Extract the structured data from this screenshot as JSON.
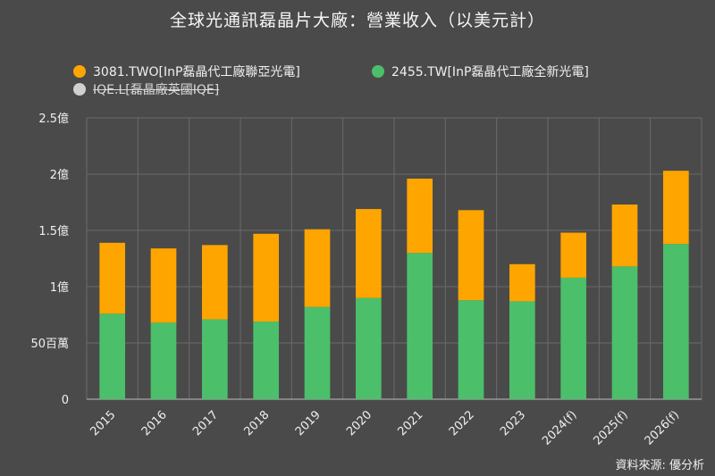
{
  "title": "全球光通訊磊晶片大廠：營業收入（以美元計）",
  "source": "資料來源: 優分析",
  "legend": [
    {
      "label": "3081.TWO[InP磊晶代工廠聯亞光電]",
      "color": "#ffa500",
      "hidden": false
    },
    {
      "label": "2455.TW[InP磊晶代工廠全新光電]",
      "color": "#4cbf6b",
      "hidden": false
    },
    {
      "label": "IQE.L[磊晶廠英國IQE]",
      "color": "#d0d0d0",
      "hidden": true
    }
  ],
  "chart_data": {
    "type": "bar",
    "stacked": true,
    "categories": [
      "2015",
      "2016",
      "2017",
      "2018",
      "2019",
      "2020",
      "2021",
      "2022",
      "2023",
      "2024(f)",
      "2025(f)",
      "2026(f)"
    ],
    "series": [
      {
        "name": "2455.TW[InP磊晶代工廠全新光電]",
        "color": "#4cbf6b",
        "values": [
          0.76,
          0.68,
          0.71,
          0.69,
          0.82,
          0.9,
          1.3,
          0.88,
          0.87,
          1.08,
          1.18,
          1.38
        ]
      },
      {
        "name": "3081.TWO[InP磊晶代工廠聯亞光電]",
        "color": "#ffa500",
        "values": [
          0.63,
          0.66,
          0.66,
          0.78,
          0.69,
          0.79,
          0.66,
          0.8,
          0.33,
          0.4,
          0.55,
          0.65
        ]
      }
    ],
    "y_ticks": [
      {
        "value": 0,
        "label": "0"
      },
      {
        "value": 0.5,
        "label": "50百萬"
      },
      {
        "value": 1,
        "label": "1億"
      },
      {
        "value": 1.5,
        "label": "1.5億"
      },
      {
        "value": 2,
        "label": "2億"
      },
      {
        "value": 2.5,
        "label": "2.5億"
      }
    ],
    "ylim": [
      0,
      2.5
    ],
    "grid": true
  }
}
